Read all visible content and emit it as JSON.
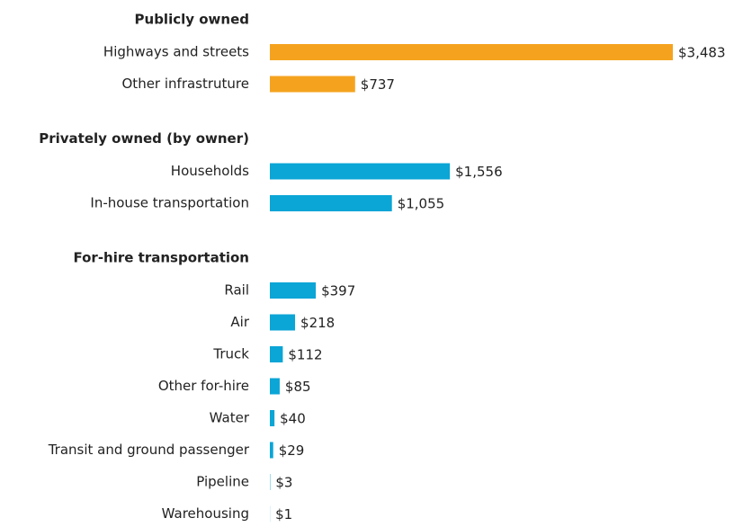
{
  "chart_data": {
    "type": "bar",
    "orientation": "horizontal",
    "groups": [
      {
        "name": "Publicly owned",
        "color": "#f5a31f",
        "categories": [
          "Highways and streets",
          "Other infrastruture"
        ],
        "values": [
          3483,
          737
        ],
        "value_labels": [
          "$3,483",
          "$737"
        ]
      },
      {
        "name": "Privately owned (by owner)",
        "color": "#0ba5d6",
        "categories": [
          "Households",
          "In-house transportation"
        ],
        "values": [
          1556,
          1055
        ],
        "value_labels": [
          "$1,556",
          "$1,055"
        ]
      },
      {
        "name": "For-hire transportation",
        "color": "#0ba5d6",
        "categories": [
          "Rail",
          "Air",
          "Truck",
          "Other for-hire",
          "Water",
          "Transit and ground passenger",
          "Pipeline",
          "Warehousing"
        ],
        "values": [
          397,
          218,
          112,
          85,
          40,
          29,
          3,
          1
        ],
        "value_labels": [
          "$397",
          "$218",
          "$112",
          "$85",
          "$40",
          "$29",
          "$3",
          "$1"
        ]
      }
    ]
  }
}
